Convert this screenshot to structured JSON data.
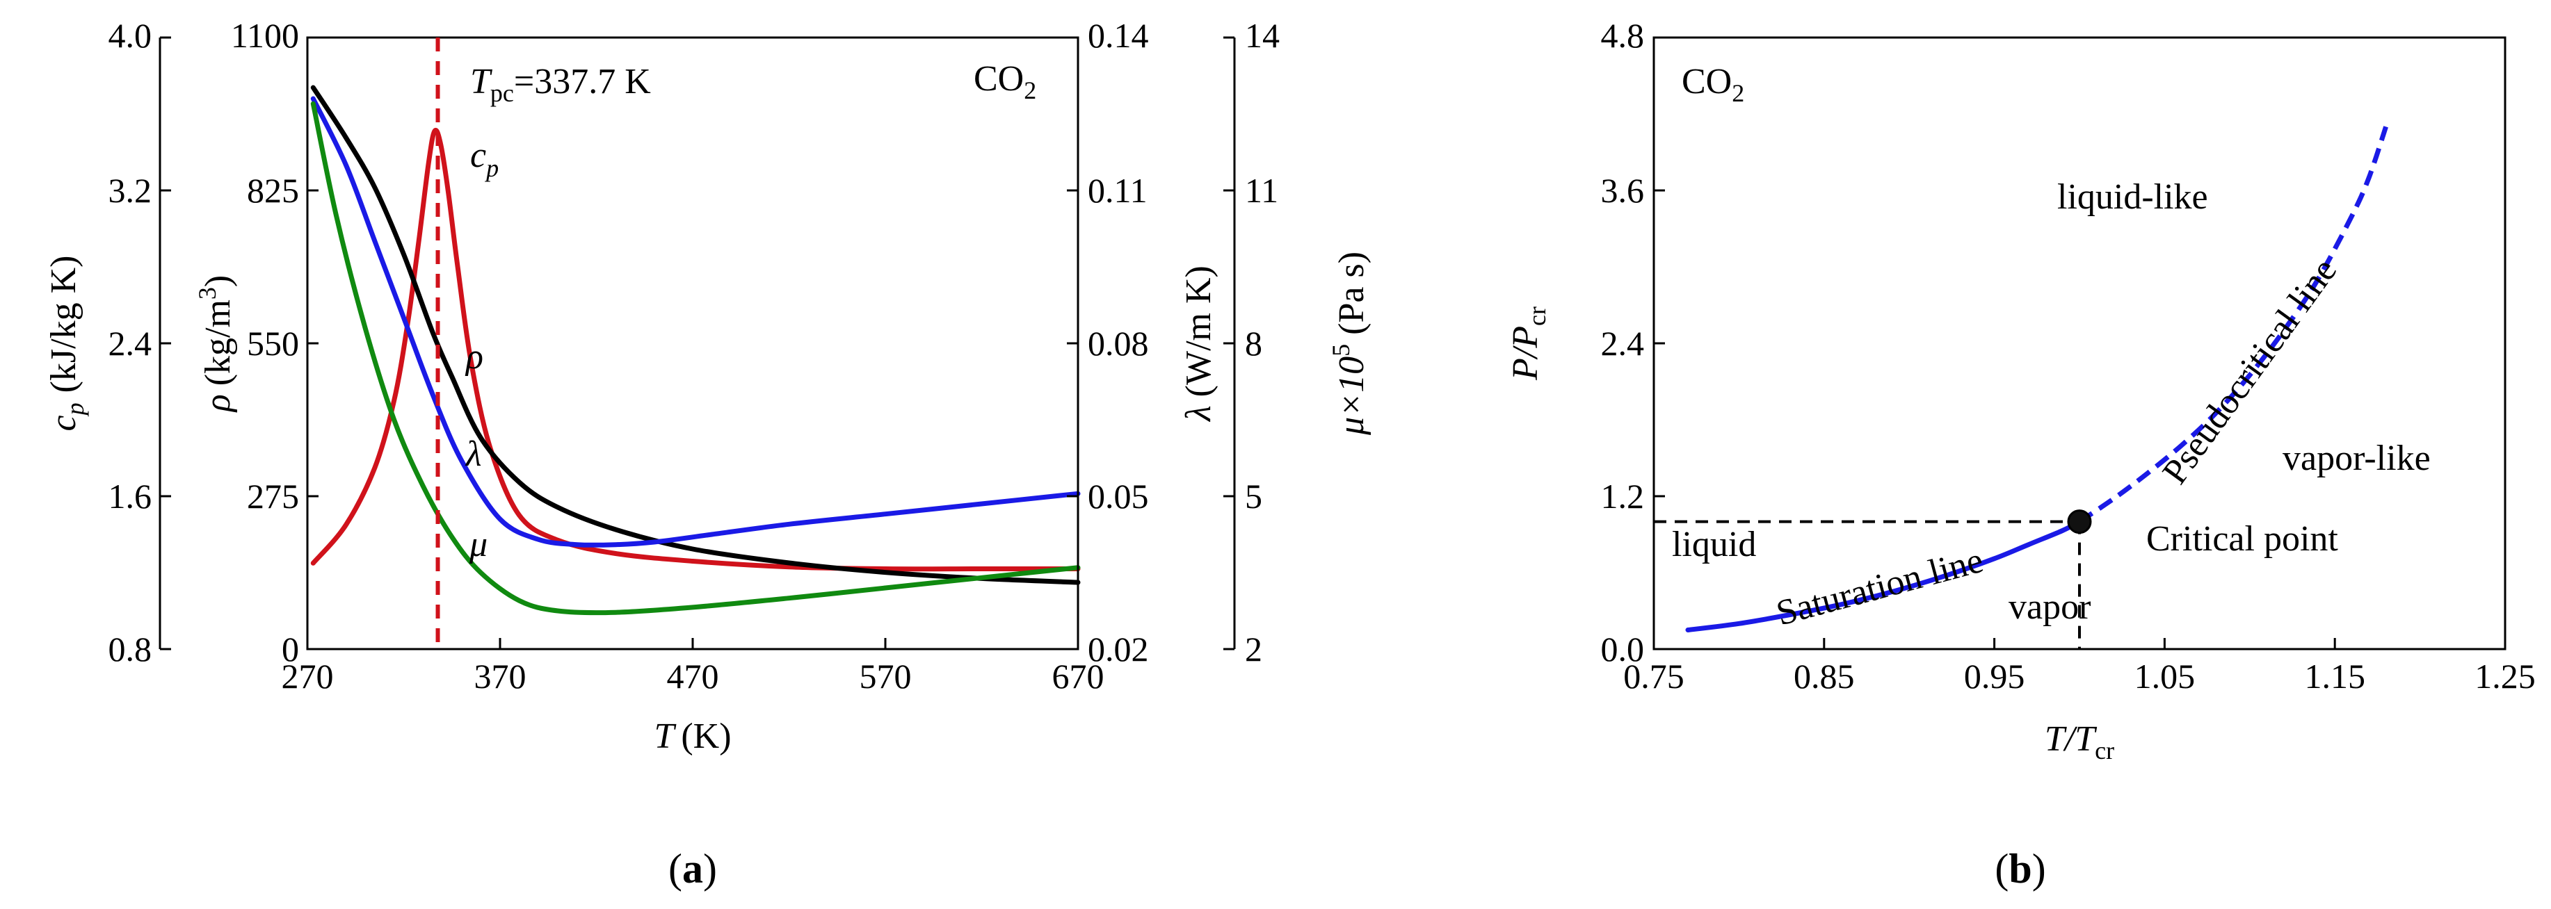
{
  "chart_data": [
    {
      "panel": "(a)",
      "type": "line",
      "title": "",
      "annotation_text": "CO",
      "annotation_sub": "2",
      "marker_label": "T",
      "marker_sub": "pc",
      "marker_value": "=337.7 K",
      "marker_x": 337.7,
      "xlabel": "T",
      "xunit": "(K)",
      "xlim": [
        270,
        670
      ],
      "xticks": [
        "270",
        "370",
        "470",
        "570",
        "670"
      ],
      "axes": {
        "cp": {
          "label": "c",
          "sub": "p",
          "unit": "(kJ/kg K)",
          "ylim": [
            0.8,
            4.0
          ],
          "ticks": [
            "0.8",
            "1.6",
            "2.4",
            "3.2",
            "4.0"
          ]
        },
        "rho": {
          "label": "ρ",
          "unit": "(kg/m",
          "sup": "3",
          "unit_end": ")",
          "ylim": [
            0,
            1100
          ],
          "ticks": [
            "0",
            "275",
            "550",
            "825",
            "1100"
          ]
        },
        "lam": {
          "label": "λ",
          "unit": "(W/m K)",
          "ylim": [
            0.02,
            0.14
          ],
          "ticks": [
            "0.02",
            "0.05",
            "0.08",
            "0.11",
            "0.14"
          ]
        },
        "mu": {
          "label": "μ×10",
          "sup": "5",
          "unit": " (Pa s)",
          "ylim": [
            2,
            14
          ],
          "ticks": [
            "2",
            "5",
            "8",
            "11",
            "14"
          ]
        }
      },
      "series": [
        {
          "name": "c",
          "sub": "p",
          "axis": "cp",
          "color": "#d0121b",
          "x": [
            273,
            290,
            305,
            315,
            322,
            328,
            333,
            336,
            339,
            343,
            348,
            355,
            365,
            380,
            400,
            430,
            470,
            520,
            570,
            620,
            670
          ],
          "y": [
            1.25,
            1.45,
            1.75,
            2.1,
            2.5,
            2.95,
            3.35,
            3.51,
            3.45,
            3.2,
            2.8,
            2.3,
            1.85,
            1.5,
            1.37,
            1.3,
            1.26,
            1.23,
            1.22,
            1.22,
            1.22
          ]
        },
        {
          "name": "ρ",
          "axis": "rho",
          "color": "#000000",
          "x": [
            273,
            290,
            305,
            320,
            335,
            345,
            360,
            380,
            400,
            430,
            470,
            520,
            570,
            620,
            670
          ],
          "y": [
            1010,
            920,
            830,
            710,
            570,
            490,
            380,
            300,
            255,
            215,
            180,
            155,
            138,
            127,
            120
          ]
        },
        {
          "name": "λ",
          "axis": "lam",
          "color": "#1a1ae6",
          "x": [
            273,
            290,
            305,
            320,
            335,
            350,
            370,
            390,
            410,
            430,
            450,
            480,
            520,
            570,
            620,
            670
          ],
          "y": [
            0.128,
            0.115,
            0.1,
            0.085,
            0.07,
            0.057,
            0.0455,
            0.0415,
            0.0405,
            0.0405,
            0.041,
            0.0425,
            0.0445,
            0.0465,
            0.0485,
            0.0505
          ]
        },
        {
          "name": "μ",
          "axis": "mu",
          "color": "#108a10",
          "x": [
            273,
            285,
            300,
            315,
            330,
            345,
            360,
            380,
            400,
            430,
            470,
            520,
            570,
            620,
            670
          ],
          "y": [
            12.7,
            10.5,
            8.3,
            6.5,
            5.2,
            4.2,
            3.5,
            2.95,
            2.75,
            2.72,
            2.82,
            3.0,
            3.2,
            3.4,
            3.6
          ]
        }
      ]
    },
    {
      "panel": "(b)",
      "type": "line",
      "annotation_text": "CO",
      "annotation_sub": "2",
      "xlabel": "T/T",
      "xlabel_sub": "cr",
      "ylabel": "P/P",
      "ylabel_sub": "cr",
      "xlim": [
        0.75,
        1.25
      ],
      "ylim": [
        0.0,
        4.8
      ],
      "xticks": [
        "0.75",
        "0.85",
        "0.95",
        "1.05",
        "1.15",
        "1.25"
      ],
      "yticks": [
        "0.0",
        "1.2",
        "2.4",
        "3.6",
        "4.8"
      ],
      "critical_point": {
        "x": 1.0,
        "y": 1.0,
        "label": "Critical point"
      },
      "series": [
        {
          "name": "Saturation line",
          "style": "solid",
          "color": "#1a1ae6",
          "x": [
            0.77,
            0.8,
            0.83,
            0.86,
            0.89,
            0.92,
            0.95,
            0.97,
            0.99,
            1.0
          ],
          "y": [
            0.15,
            0.2,
            0.27,
            0.35,
            0.45,
            0.57,
            0.71,
            0.82,
            0.93,
            1.0
          ]
        },
        {
          "name": "Pseudocritical line",
          "style": "dashed",
          "color": "#1a1ae6",
          "x": [
            1.0,
            1.02,
            1.04,
            1.06,
            1.08,
            1.1,
            1.12,
            1.14,
            1.16,
            1.17,
            1.18
          ],
          "y": [
            1.0,
            1.18,
            1.38,
            1.6,
            1.85,
            2.15,
            2.5,
            2.9,
            3.4,
            3.7,
            4.1
          ]
        }
      ],
      "region_labels": [
        "liquid-like",
        "vapor-like",
        "liquid",
        "vapor"
      ]
    }
  ],
  "captions": {
    "a": "a",
    "b": "b"
  },
  "colors": {
    "cp": "#d0121b",
    "rho": "#000000",
    "lam": "#1a1ae6",
    "mu": "#108a10"
  }
}
